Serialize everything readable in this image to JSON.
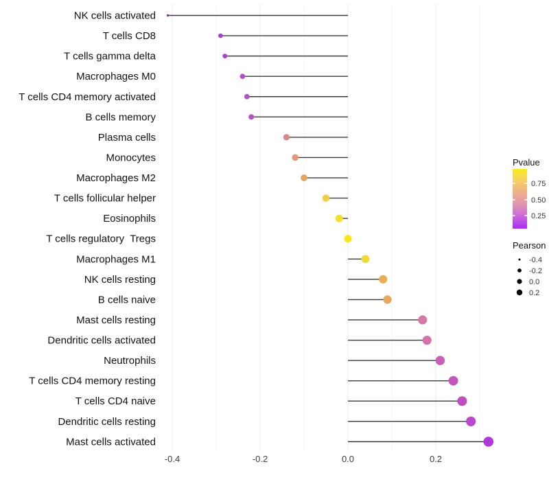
{
  "chart_data": {
    "type": "scatter",
    "subtype": "lollipop-horizontal",
    "title": "",
    "xlabel": "",
    "ylabel": "",
    "xlim": [
      -0.45,
      0.35
    ],
    "grid_step": 0.1,
    "grid_on": true,
    "x_ticks": [
      -0.4,
      -0.2,
      0.0,
      0.2
    ],
    "x_tick_labels": [
      "-0.4",
      "-0.2",
      "0.0",
      "0.2"
    ],
    "categories": [
      "NK cells activated",
      "T cells CD8",
      "T cells gamma delta",
      "Macrophages M0",
      "T cells CD4 memory activated",
      "B cells memory",
      "Plasma cells",
      "Monocytes",
      "Macrophages M2",
      "T cells follicular helper",
      "Eosinophils",
      "T cells regulatory  Tregs",
      "Macrophages M1",
      "NK cells resting",
      "B cells naive",
      "Mast cells resting",
      "Dendritic cells activated",
      "Neutrophils",
      "T cells CD4 memory resting",
      "T cells CD4 naive",
      "Dendritic cells resting",
      "Mast cells activated"
    ],
    "series": [
      {
        "name": "Pearson",
        "values": [
          -0.41,
          -0.29,
          -0.28,
          -0.24,
          -0.23,
          -0.22,
          -0.14,
          -0.12,
          -0.1,
          -0.05,
          -0.02,
          0.0,
          0.04,
          0.08,
          0.09,
          0.17,
          0.18,
          0.21,
          0.24,
          0.26,
          0.28,
          0.32
        ]
      }
    ],
    "point_colors": [
      "#8a27d2",
      "#a83fcc",
      "#aa42ca",
      "#b14fc6",
      "#b351c5",
      "#b554c4",
      "#d8898d",
      "#df9878",
      "#e6a463",
      "#efce45",
      "#f4df2b",
      "#f9e71e",
      "#f2da35",
      "#e9ae55",
      "#e7a75e",
      "#d678a6",
      "#d374a9",
      "#c75fb7",
      "#c356bd",
      "#bf4ec3",
      "#bb48ce",
      "#af39d6"
    ],
    "legend_position": "right"
  },
  "legend": {
    "pvalue": {
      "title": "Pvalue",
      "tick_labels": [
        "0.75",
        "0.50",
        "0.25"
      ],
      "gradient_top_to_bottom": [
        "#f9ec20",
        "#f6d064",
        "#efae8a",
        "#e294b2",
        "#c966dd",
        "#a82bf4"
      ]
    },
    "pearson": {
      "title": "Pearson",
      "item_labels": [
        "-0.4",
        "-0.2",
        "0.0",
        "0.2"
      ],
      "dot_color": "#000000"
    }
  },
  "colors": {
    "background": "#ffffff",
    "stem": "#3a3a3a",
    "grid_major": "#e8e8e8",
    "grid_minor": "#f4f4f4",
    "axis_text": "#3d3d3d",
    "category_text": "#111111",
    "legend_title_text": "#111111",
    "legend_item_text": "#333333"
  }
}
